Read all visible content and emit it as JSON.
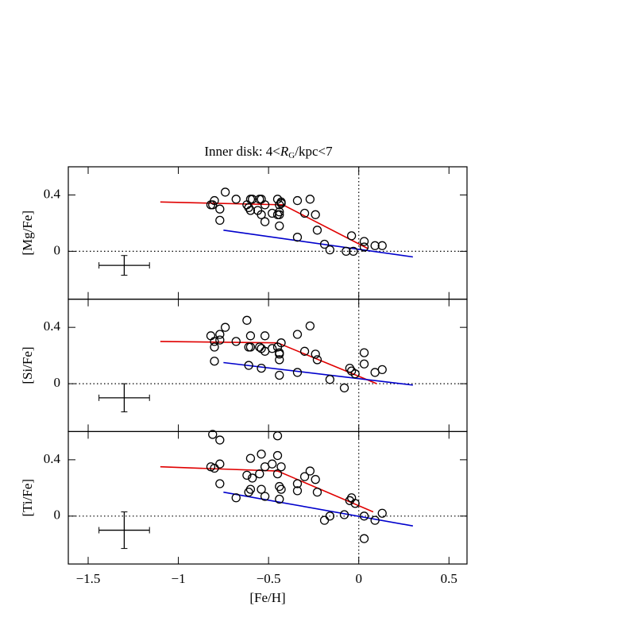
{
  "chart_data": [
    {
      "type": "scatter",
      "title": {
        "prefix": "Inner disk: 4<",
        "italic": "R",
        "sub": "G",
        "suffix": "/kpc<7"
      },
      "ylabel": "[Mg/Fe]",
      "xlim": [
        -1.61,
        0.6
      ],
      "xticks": [
        {
          "value": -1.5,
          "label": "−1.5"
        },
        {
          "value": -1,
          "label": "−1"
        },
        {
          "value": -0.5,
          "label": "−0.5"
        },
        0,
        0.5
      ],
      "ylim": [
        -0.34,
        0.6
      ],
      "yticks": [
        0,
        0.4
      ],
      "points": {
        "x": [
          -0.81,
          -0.8,
          -0.82,
          -0.74,
          -0.77,
          -0.77,
          -0.68,
          -0.62,
          -0.6,
          -0.61,
          -0.6,
          -0.59,
          -0.55,
          -0.56,
          -0.54,
          -0.54,
          -0.52,
          -0.52,
          -0.48,
          -0.45,
          -0.45,
          -0.44,
          -0.44,
          -0.44,
          -0.44,
          -0.43,
          -0.43,
          -0.34,
          -0.34,
          -0.3,
          -0.27,
          -0.24,
          -0.23,
          -0.19,
          -0.16,
          -0.07,
          -0.04,
          -0.03,
          0.03,
          0.03,
          0.09,
          0.13
        ],
        "y": [
          0.33,
          0.36,
          0.33,
          0.42,
          0.3,
          0.22,
          0.37,
          0.33,
          0.37,
          0.31,
          0.29,
          0.37,
          0.37,
          0.29,
          0.26,
          0.37,
          0.21,
          0.33,
          0.27,
          0.26,
          0.37,
          0.33,
          0.28,
          0.26,
          0.18,
          0.35,
          0.34,
          0.1,
          0.36,
          0.27,
          0.37,
          0.26,
          0.15,
          0.05,
          0.01,
          0.0,
          0.11,
          0.0,
          0.07,
          0.03,
          0.04,
          0.04
        ]
      },
      "fits": [
        {
          "color": "#e00000",
          "x": [
            -1.1,
            -0.42,
            0.05
          ],
          "y": [
            0.35,
            0.33,
            0.02
          ]
        },
        {
          "color": "#0000cc",
          "x": [
            -0.75,
            0.3
          ],
          "y": [
            0.15,
            -0.04
          ]
        }
      ],
      "error_bar": {
        "x": -1.3,
        "y": -0.1,
        "xerr": 0.14,
        "yerr": 0.07
      }
    },
    {
      "type": "scatter",
      "ylabel": "[Si/Fe]",
      "xlim": [
        -1.61,
        0.6
      ],
      "xticks": [
        {
          "value": -1.5,
          "label": "−1.5"
        },
        {
          "value": -1,
          "label": "−1"
        },
        {
          "value": -0.5,
          "label": "−0.5"
        },
        0,
        0.5
      ],
      "ylim": [
        -0.34,
        0.6
      ],
      "yticks": [
        0,
        0.4
      ],
      "points": {
        "x": [
          -0.82,
          -0.8,
          -0.8,
          -0.8,
          -0.77,
          -0.74,
          -0.77,
          -0.68,
          -0.62,
          -0.61,
          -0.6,
          -0.6,
          -0.61,
          -0.55,
          -0.54,
          -0.52,
          -0.52,
          -0.54,
          -0.48,
          -0.45,
          -0.44,
          -0.44,
          -0.44,
          -0.43,
          -0.44,
          -0.34,
          -0.34,
          -0.3,
          -0.27,
          -0.24,
          -0.23,
          -0.16,
          -0.08,
          -0.05,
          -0.04,
          -0.02,
          0.03,
          0.03,
          0.09,
          0.13
        ],
        "y": [
          0.34,
          0.3,
          0.26,
          0.16,
          0.35,
          0.4,
          0.31,
          0.3,
          0.45,
          0.26,
          0.26,
          0.34,
          0.13,
          0.26,
          0.25,
          0.34,
          0.23,
          0.11,
          0.25,
          0.26,
          0.22,
          0.17,
          0.06,
          0.29,
          0.21,
          0.35,
          0.08,
          0.23,
          0.41,
          0.21,
          0.17,
          0.03,
          -0.03,
          0.11,
          0.09,
          0.07,
          0.22,
          0.14,
          0.08,
          0.1
        ]
      },
      "fits": [
        {
          "color": "#e00000",
          "x": [
            -1.1,
            -0.45,
            0.1
          ],
          "y": [
            0.3,
            0.29,
            0.0
          ]
        },
        {
          "color": "#0000cc",
          "x": [
            -0.75,
            0.3
          ],
          "y": [
            0.15,
            -0.01
          ]
        }
      ],
      "error_bar": {
        "x": -1.3,
        "y": -0.1,
        "xerr": 0.14,
        "yerr": 0.1
      }
    },
    {
      "type": "scatter",
      "ylabel": "[Ti/Fe]",
      "xlabel": "[Fe/H]",
      "xlim": [
        -1.61,
        0.6
      ],
      "xticks": [
        {
          "value": -1.5,
          "label": "−1.5"
        },
        {
          "value": -1,
          "label": "−1"
        },
        {
          "value": -0.5,
          "label": "−0.5"
        },
        0,
        0.5
      ],
      "ylim": [
        -0.34,
        0.6
      ],
      "yticks": [
        0,
        0.4
      ],
      "points": {
        "x": [
          -0.81,
          -0.77,
          -0.82,
          -0.8,
          -0.77,
          -0.77,
          -0.68,
          -0.61,
          -0.62,
          -0.6,
          -0.59,
          -0.6,
          -0.55,
          -0.54,
          -0.54,
          -0.52,
          -0.52,
          -0.48,
          -0.45,
          -0.45,
          -0.45,
          -0.44,
          -0.44,
          -0.43,
          -0.43,
          -0.34,
          -0.34,
          -0.3,
          -0.27,
          -0.24,
          -0.23,
          -0.19,
          -0.16,
          -0.08,
          -0.05,
          -0.04,
          -0.02,
          0.03,
          0.03,
          0.09,
          0.13
        ],
        "y": [
          0.58,
          0.54,
          0.35,
          0.34,
          0.37,
          0.23,
          0.13,
          0.17,
          0.29,
          0.41,
          0.27,
          0.19,
          0.3,
          0.44,
          0.19,
          0.14,
          0.35,
          0.37,
          0.43,
          0.57,
          0.3,
          0.21,
          0.12,
          0.19,
          0.35,
          0.23,
          0.18,
          0.28,
          0.32,
          0.26,
          0.17,
          -0.03,
          0.0,
          0.01,
          0.11,
          0.13,
          0.09,
          0.0,
          -0.16,
          -0.03,
          0.02
        ]
      },
      "fits": [
        {
          "color": "#e00000",
          "x": [
            -1.1,
            -0.45,
            0.08
          ],
          "y": [
            0.35,
            0.32,
            0.03
          ]
        },
        {
          "color": "#0000cc",
          "x": [
            -0.75,
            0.3
          ],
          "y": [
            0.17,
            -0.07
          ]
        }
      ],
      "error_bar": {
        "x": -1.3,
        "y": -0.1,
        "xerr": 0.14,
        "yerr": 0.13
      }
    }
  ]
}
